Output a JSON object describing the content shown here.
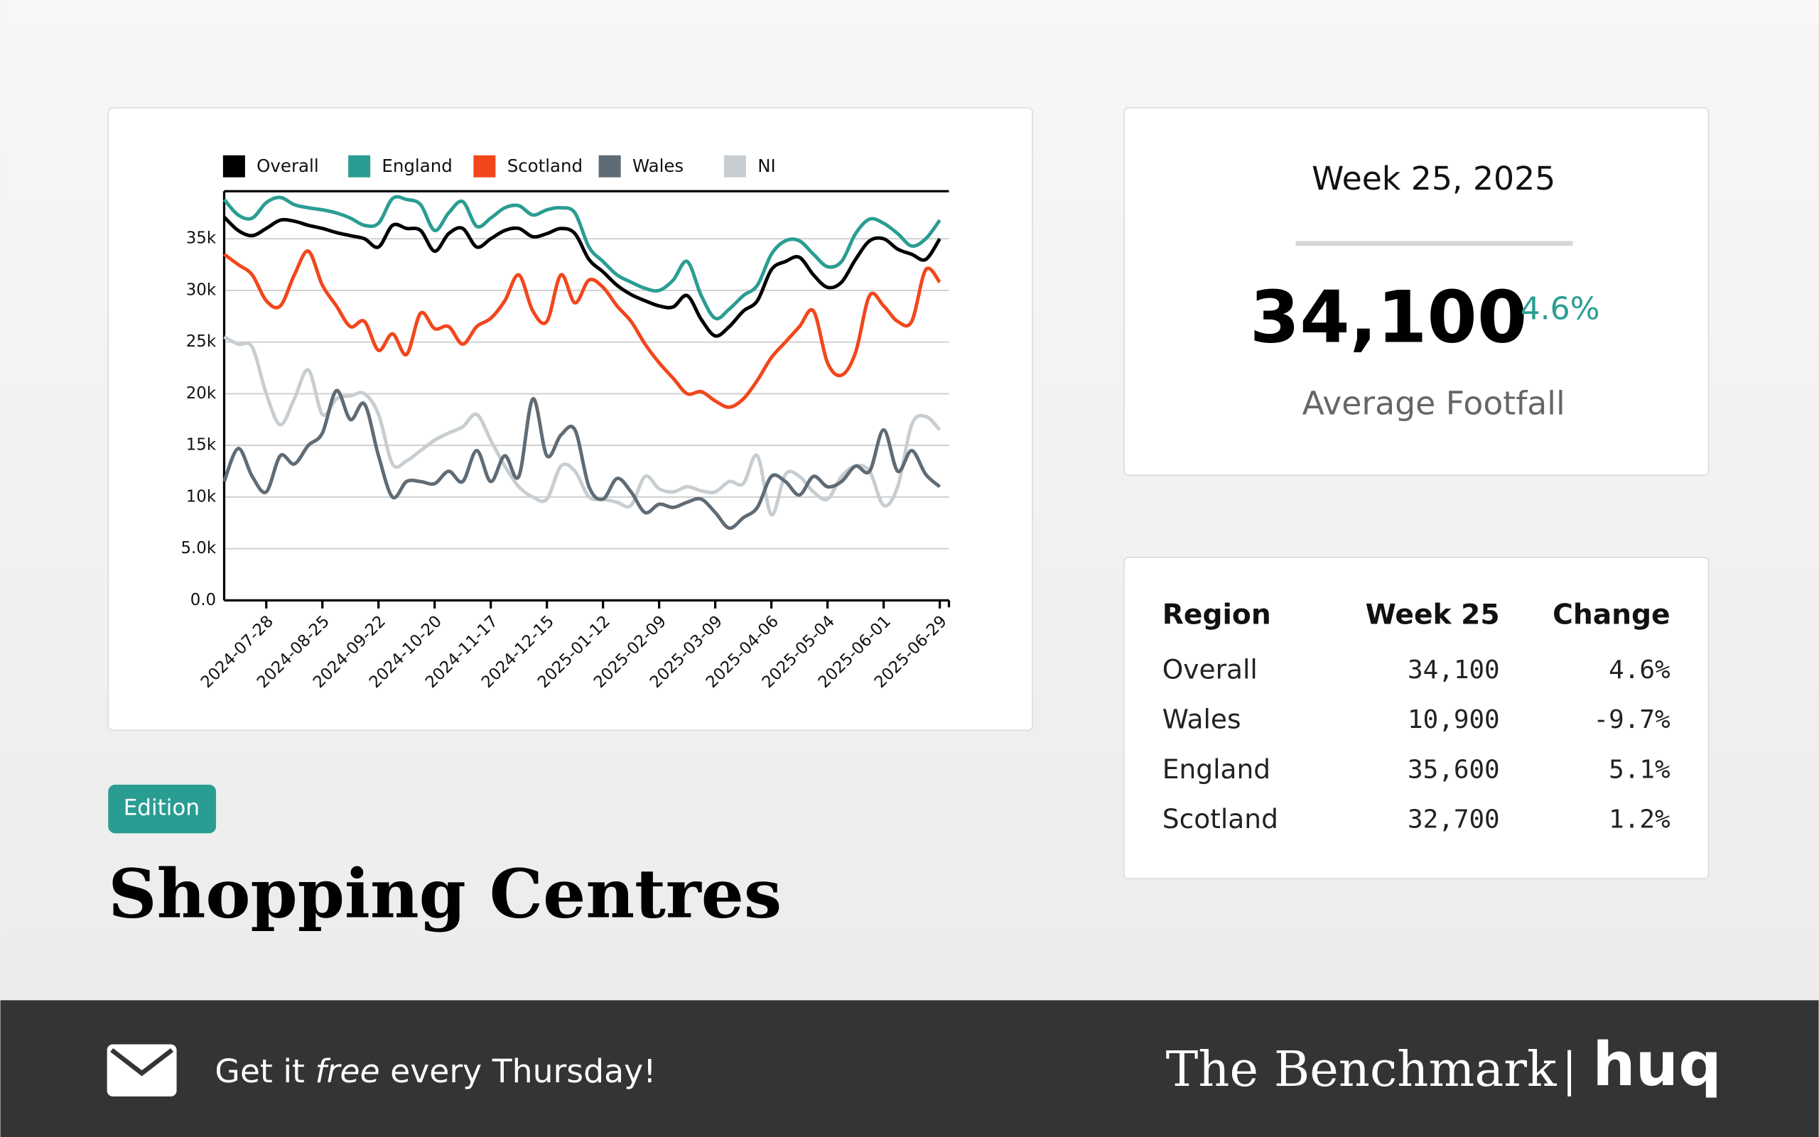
{
  "chart_data": {
    "type": "line",
    "x": [
      "2024-07-07",
      "2024-07-14",
      "2024-07-21",
      "2024-07-28",
      "2024-08-04",
      "2024-08-11",
      "2024-08-18",
      "2024-08-25",
      "2024-09-01",
      "2024-09-08",
      "2024-09-15",
      "2024-09-22",
      "2024-09-29",
      "2024-10-06",
      "2024-10-13",
      "2024-10-20",
      "2024-10-27",
      "2024-11-03",
      "2024-11-10",
      "2024-11-17",
      "2024-11-24",
      "2024-12-01",
      "2024-12-08",
      "2024-12-15",
      "2024-12-22",
      "2024-12-29",
      "2025-01-05",
      "2025-01-12",
      "2025-01-19",
      "2025-01-26",
      "2025-02-02",
      "2025-02-09",
      "2025-02-16",
      "2025-02-23",
      "2025-03-02",
      "2025-03-09",
      "2025-03-16",
      "2025-03-23",
      "2025-03-30",
      "2025-04-06",
      "2025-04-13",
      "2025-04-20",
      "2025-04-27",
      "2025-05-04",
      "2025-05-11",
      "2025-05-18",
      "2025-05-25",
      "2025-06-01",
      "2025-06-08",
      "2025-06-15",
      "2025-06-22",
      "2025-06-29"
    ],
    "xticks": [
      "2024-07-28",
      "2024-08-25",
      "2024-09-22",
      "2024-10-20",
      "2024-11-17",
      "2024-12-15",
      "2025-01-12",
      "2025-02-09",
      "2025-03-09",
      "2025-04-06",
      "2025-05-04",
      "2025-06-01",
      "2025-06-29"
    ],
    "ylim": [
      0,
      39600
    ],
    "yticks": [
      {
        "value": 0,
        "label": "0.0"
      },
      {
        "value": 5000,
        "label": "5.0k"
      },
      {
        "value": 10000,
        "label": "10k"
      },
      {
        "value": 15000,
        "label": "15k"
      },
      {
        "value": 20000,
        "label": "20k"
      },
      {
        "value": 25000,
        "label": "25k"
      },
      {
        "value": 30000,
        "label": "30k"
      },
      {
        "value": 35000,
        "label": "35k"
      }
    ],
    "grid": true,
    "legend": "top",
    "series": [
      {
        "name": "Overall",
        "color": "#000000",
        "values": [
          37100,
          35800,
          35300,
          36000,
          36800,
          36700,
          36300,
          36000,
          35600,
          35300,
          35000,
          34200,
          36300,
          36000,
          35800,
          33800,
          35500,
          36000,
          34200,
          35000,
          35800,
          36000,
          35200,
          35500,
          36000,
          35500,
          33000,
          31800,
          30500,
          29600,
          29000,
          28500,
          28400,
          29500,
          27200,
          25600,
          26500,
          28000,
          29000,
          32000,
          32800,
          33200,
          31500,
          30300,
          30800,
          33000,
          34800,
          35000,
          34000,
          33500,
          33000,
          35000
        ]
      },
      {
        "name": "England",
        "color": "#2a9d92",
        "values": [
          38800,
          37300,
          37000,
          38500,
          39000,
          38300,
          38000,
          37800,
          37500,
          37000,
          36300,
          36500,
          38900,
          38800,
          38300,
          35800,
          37500,
          38600,
          36200,
          37000,
          38000,
          38200,
          37300,
          37800,
          38000,
          37500,
          34200,
          32800,
          31500,
          30800,
          30200,
          30000,
          31000,
          32800,
          29500,
          27300,
          28200,
          29500,
          30500,
          33500,
          34800,
          34800,
          33500,
          32300,
          32800,
          35500,
          36900,
          36500,
          35500,
          34300,
          35000,
          36800
        ]
      },
      {
        "name": "Scotland",
        "color": "#f2461c",
        "values": [
          33500,
          32500,
          31500,
          29000,
          28500,
          31500,
          33800,
          30500,
          28500,
          26500,
          27000,
          24200,
          25800,
          23800,
          27800,
          26300,
          26500,
          24800,
          26500,
          27300,
          29000,
          31500,
          28000,
          27000,
          31500,
          28800,
          31000,
          30300,
          28500,
          27000,
          24800,
          23000,
          21500,
          20000,
          20200,
          19300,
          18700,
          19500,
          21300,
          23500,
          25000,
          26500,
          28000,
          23000,
          21800,
          24000,
          29500,
          28500,
          27000,
          27000,
          32000,
          30800
        ]
      },
      {
        "name": "Wales",
        "color": "#5f6b75",
        "values": [
          11500,
          14700,
          12000,
          10500,
          14000,
          13200,
          15000,
          16200,
          20300,
          17500,
          19000,
          14000,
          10000,
          11500,
          11500,
          11300,
          12500,
          11500,
          14500,
          11500,
          14000,
          12000,
          19500,
          14000,
          16000,
          16500,
          11000,
          9800,
          11800,
          10500,
          8500,
          9300,
          9000,
          9500,
          9800,
          8500,
          7000,
          8000,
          9000,
          12000,
          11500,
          10200,
          12000,
          11000,
          11500,
          13000,
          12500,
          16500,
          12500,
          14500,
          12200,
          11000
        ]
      },
      {
        "name": "NI",
        "color": "#c7cdd0",
        "values": [
          25500,
          24800,
          24500,
          20000,
          17000,
          19500,
          22300,
          18000,
          19500,
          19800,
          20000,
          18000,
          13200,
          13500,
          14500,
          15500,
          16200,
          16800,
          18000,
          15500,
          13000,
          11000,
          10000,
          9800,
          13000,
          12500,
          10000,
          9800,
          9500,
          9200,
          12000,
          10800,
          10500,
          11000,
          10600,
          10500,
          11500,
          11300,
          14000,
          8300,
          12200,
          12000,
          10500,
          9800,
          12000,
          13000,
          12500,
          9200,
          11000,
          17000,
          17800,
          16500
        ]
      }
    ]
  },
  "summary": {
    "week": "Week 25, 2025",
    "value": "34,100",
    "change": "4.6%",
    "label": "Average Footfall"
  },
  "table": {
    "header": [
      "Region",
      "Week 25",
      "Change"
    ],
    "rows": [
      [
        "Overall",
        "34,100",
        "4.6%"
      ],
      [
        "Wales",
        "10,900",
        "-9.7%"
      ],
      [
        "England",
        "35,600",
        "5.1%"
      ],
      [
        "Scotland",
        "32,700",
        "1.2%"
      ]
    ]
  },
  "badge": "Edition",
  "title": "Shopping Centres",
  "footer": {
    "cta": [
      "Get it ",
      "free",
      " every Thursday!"
    ],
    "brand": "The Benchmark",
    "logo": "huq"
  }
}
